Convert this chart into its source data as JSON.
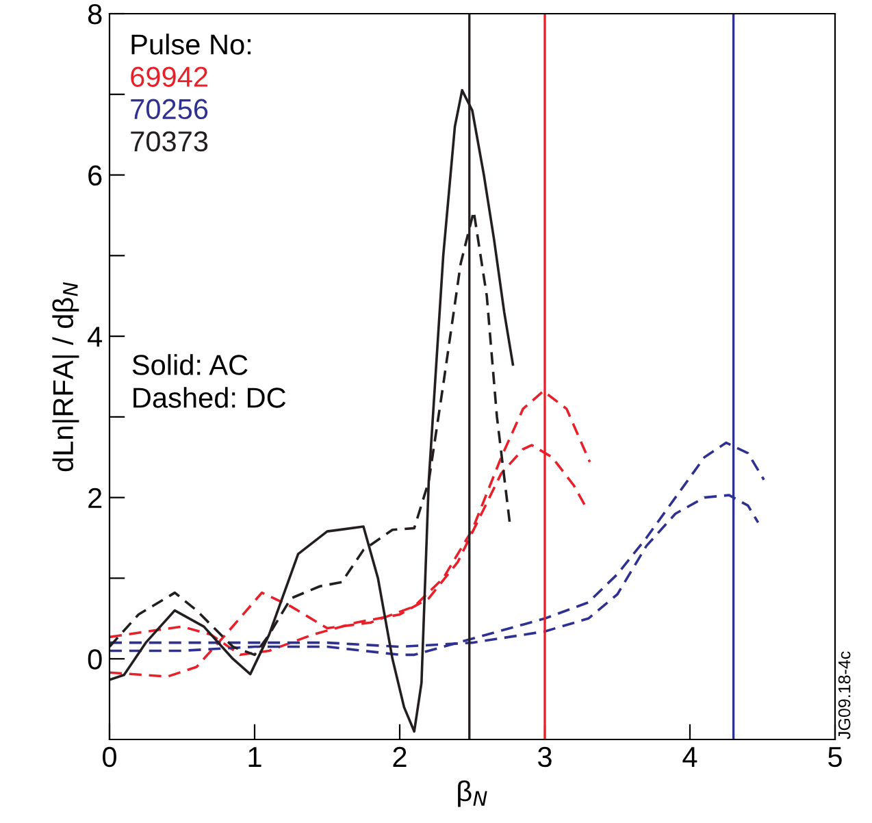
{
  "chart_data": {
    "type": "line",
    "xlabel": "β$_{N}$",
    "ylabel": "dLn|RFA| / dβ$_{N}$",
    "legend_title": "Pulse No:",
    "legend": "top left",
    "grid": false,
    "marker": "none",
    "xlim": [
      0,
      5
    ],
    "xticks": [
      0,
      1,
      2,
      3,
      4,
      5
    ],
    "ylim": [
      -1,
      8
    ],
    "yticks": [
      0,
      {
        "value": 1,
        "label": null
      },
      2,
      {
        "value": 3,
        "label": null
      },
      4,
      {
        "value": 5,
        "label": null
      },
      6,
      {
        "value": 7,
        "label": null
      },
      8
    ],
    "series": [
      {
        "name": "69942",
        "color": "#e8202a",
        "line_style": "dashed",
        "x": [
          0,
          0.3,
          0.5,
          0.7,
          0.9,
          1.1,
          1.4,
          1.7,
          2.0,
          2.2,
          2.4,
          2.55,
          2.7,
          2.85,
          2.91,
          3.05,
          3.2,
          3.29
        ],
        "values": [
          0.27,
          0.35,
          0.4,
          0.3,
          0.05,
          0.1,
          0.3,
          0.45,
          0.55,
          0.75,
          1.2,
          1.75,
          2.3,
          2.6,
          2.65,
          2.5,
          2.15,
          1.86
        ]
      },
      {
        "color": "#e8202a",
        "line_style": "dashed",
        "x": [
          0,
          0.4,
          0.6,
          0.8,
          1.05,
          1.25,
          1.5,
          1.8,
          2.1,
          2.3,
          2.5,
          2.7,
          2.85,
          2.99,
          3.15,
          3.31
        ],
        "values": [
          -0.17,
          -0.22,
          -0.1,
          0.3,
          0.82,
          0.65,
          0.38,
          0.45,
          0.65,
          1.0,
          1.6,
          2.5,
          3.1,
          3.32,
          3.1,
          2.44
        ]
      },
      {
        "name": "70256",
        "color": "#2e3192",
        "line_style": "dashed",
        "x": [
          0,
          0.5,
          1.0,
          1.5,
          2.0,
          2.1,
          2.5,
          3.0,
          3.3,
          3.5,
          3.7,
          3.9,
          4.1,
          4.25,
          4.4,
          4.51
        ],
        "values": [
          0.1,
          0.1,
          0.15,
          0.15,
          0.05,
          0.05,
          0.25,
          0.5,
          0.7,
          1.05,
          1.5,
          2.0,
          2.5,
          2.68,
          2.55,
          2.22
        ]
      },
      {
        "color": "#2e3192",
        "line_style": "dashed",
        "x": [
          0,
          0.5,
          1.0,
          1.5,
          2.0,
          2.5,
          3.0,
          3.3,
          3.5,
          3.7,
          3.9,
          4.1,
          4.27,
          4.4,
          4.47
        ],
        "values": [
          0.2,
          0.2,
          0.2,
          0.2,
          0.15,
          0.2,
          0.34,
          0.5,
          0.8,
          1.4,
          1.8,
          2.0,
          2.03,
          1.9,
          1.69
        ]
      },
      {
        "name": "70373",
        "color": "#231f20",
        "line_style": "solid",
        "x": [
          0,
          0.1,
          0.25,
          0.45,
          0.65,
          0.85,
          0.97,
          1.1,
          1.3,
          1.5,
          1.75,
          1.85,
          1.95,
          2.03,
          2.1,
          2.15,
          2.2,
          2.3,
          2.38,
          2.43,
          2.5,
          2.58,
          2.65,
          2.72,
          2.78
        ],
        "values": [
          -0.26,
          -0.2,
          0.2,
          0.6,
          0.4,
          0.0,
          -0.19,
          0.3,
          1.3,
          1.58,
          1.64,
          1.0,
          0.0,
          -0.6,
          -0.9,
          -0.3,
          2.2,
          5.0,
          6.6,
          7.05,
          6.8,
          6.0,
          5.2,
          4.3,
          3.65
        ]
      },
      {
        "color": "#231f20",
        "line_style": "dashed",
        "x": [
          0,
          0.2,
          0.45,
          0.6,
          0.85,
          1.0,
          1.1,
          1.25,
          1.45,
          1.6,
          1.75,
          1.95,
          2.1,
          2.2,
          2.3,
          2.42,
          2.51,
          2.6,
          2.67,
          2.76
        ],
        "values": [
          0.15,
          0.55,
          0.82,
          0.6,
          0.15,
          0.05,
          0.3,
          0.75,
          0.9,
          0.95,
          1.35,
          1.6,
          1.62,
          2.2,
          3.4,
          4.9,
          5.55,
          4.5,
          3.0,
          1.66
        ]
      }
    ],
    "ref_lines": [
      {
        "axis": "x",
        "value": 2.48,
        "color": "#231f20"
      },
      {
        "axis": "x",
        "value": 3.0,
        "color": "#e8202a"
      },
      {
        "axis": "x",
        "value": 4.3,
        "color": "#2e3192"
      }
    ],
    "annotations": [
      "Solid: AC\nDashed: DC",
      "JG09.18-4c"
    ]
  }
}
